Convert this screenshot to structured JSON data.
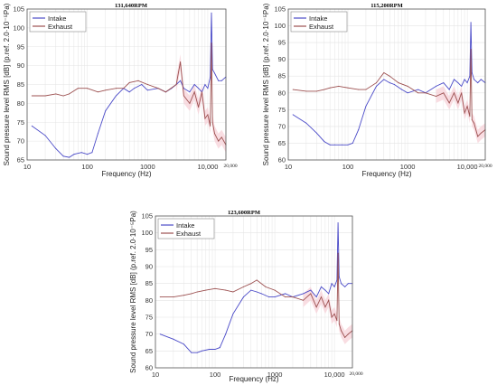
{
  "figure": {
    "shared": {
      "xlabel": "Frequency (Hz)",
      "ylabel": "Sound pressure level RMS [dB] (p.ref. 2.0·10⁻⁵Pa)",
      "legend": [
        "Intake",
        "Exhaust"
      ],
      "colors": {
        "Intake": "#4b4bc8",
        "Exhaust": "#9c5050",
        "band": "#f7cfd6",
        "grid": "#e4e4e4"
      }
    }
  },
  "chart_data": [
    {
      "type": "line",
      "title": "131,640RPM",
      "xscale": "log",
      "xlim": [
        10,
        20000
      ],
      "ylim": [
        65,
        105
      ],
      "xticks": [
        "10",
        "100",
        "1000",
        "10,000"
      ],
      "xtick_values": [
        10,
        100,
        1000,
        10000
      ],
      "xtick_extra": {
        "label": "20,000",
        "value": 20000
      },
      "yticks": [
        65,
        70,
        75,
        80,
        85,
        90,
        95,
        100,
        105
      ],
      "legend_position": "top-left",
      "grid": true,
      "series": [
        {
          "name": "Intake",
          "x": [
            12,
            20,
            30,
            40,
            50,
            60,
            80,
            100,
            120,
            150,
            200,
            300,
            400,
            500,
            600,
            800,
            1000,
            1500,
            2000,
            2500,
            3000,
            3500,
            4000,
            5000,
            6000,
            7000,
            8000,
            9000,
            10000,
            11000,
            11500,
            12000,
            13000,
            15000,
            17000,
            20000
          ],
          "y": [
            74,
            71.5,
            68,
            66,
            65.7,
            66.5,
            67,
            66.5,
            67,
            72,
            78,
            82,
            84,
            83,
            84,
            85,
            83.5,
            84,
            83,
            84,
            85,
            86,
            84,
            83,
            85,
            84,
            83,
            85,
            84,
            87,
            104,
            89,
            88,
            86,
            86,
            87
          ]
        },
        {
          "name": "Exhaust",
          "x": [
            12,
            20,
            30,
            40,
            50,
            70,
            100,
            150,
            200,
            300,
            400,
            500,
            700,
            1000,
            1500,
            2000,
            3000,
            3500,
            4000,
            5000,
            6000,
            7000,
            8000,
            9000,
            10000,
            11000,
            11500,
            12000,
            13000,
            15000,
            17000,
            20000
          ],
          "y": [
            82,
            82,
            82.5,
            82,
            82.5,
            84,
            84,
            83,
            83.5,
            84,
            84,
            85.5,
            86,
            85,
            84,
            83,
            85,
            91,
            82,
            80,
            83,
            79,
            83,
            76,
            77,
            74,
            96,
            75,
            72,
            70,
            71,
            69
          ]
        }
      ]
    },
    {
      "type": "line",
      "title": "115,200RPM",
      "xscale": "log",
      "xlim": [
        10,
        20000
      ],
      "ylim": [
        60,
        105
      ],
      "xticks": [
        "10",
        "100",
        "1000",
        "10,000"
      ],
      "xtick_values": [
        10,
        100,
        1000,
        10000
      ],
      "xtick_extra": {
        "label": "20,000",
        "value": 20000
      },
      "yticks": [
        60,
        65,
        70,
        75,
        80,
        85,
        90,
        95,
        100,
        105
      ],
      "legend_position": "top-left",
      "grid": true,
      "series": [
        {
          "name": "Intake",
          "x": [
            12,
            20,
            30,
            40,
            50,
            60,
            80,
            100,
            120,
            150,
            200,
            300,
            400,
            500,
            600,
            800,
            1000,
            1500,
            2000,
            3000,
            4000,
            5000,
            6000,
            7000,
            8000,
            9000,
            10000,
            11000,
            11500,
            12000,
            13000,
            15000,
            17000,
            20000
          ],
          "y": [
            73.5,
            71,
            68,
            65.5,
            64.5,
            64.5,
            64.5,
            64.5,
            65,
            69,
            76,
            82,
            84,
            83,
            82.5,
            81,
            80,
            81,
            80,
            82,
            83,
            81,
            84,
            83,
            82,
            84,
            83,
            85,
            101,
            86,
            84,
            83,
            84,
            83
          ]
        },
        {
          "name": "Exhaust",
          "x": [
            12,
            20,
            30,
            40,
            50,
            70,
            100,
            150,
            200,
            300,
            400,
            500,
            700,
            1000,
            1500,
            2000,
            3000,
            4000,
            5000,
            6000,
            7000,
            8000,
            9000,
            10000,
            11000,
            11500,
            12000,
            13000,
            15000,
            17000,
            20000
          ],
          "y": [
            81,
            80.5,
            80.5,
            81,
            81.5,
            82,
            81.5,
            81,
            81,
            83,
            86,
            85,
            83,
            82,
            80,
            80,
            79,
            80,
            77,
            80,
            77,
            80,
            74,
            76,
            73,
            93,
            72,
            71,
            67,
            68,
            69
          ]
        }
      ]
    },
    {
      "type": "line",
      "title": "123,600RPM",
      "xscale": "log",
      "xlim": [
        10,
        20000
      ],
      "ylim": [
        60,
        105
      ],
      "xticks": [
        "10",
        "100",
        "1000",
        "10,000"
      ],
      "xtick_values": [
        10,
        100,
        1000,
        10000
      ],
      "xtick_extra": {
        "label": "20,000",
        "value": 20000
      },
      "yticks": [
        60,
        65,
        70,
        75,
        80,
        85,
        90,
        95,
        100,
        105
      ],
      "legend_position": "top-left",
      "grid": true,
      "series": [
        {
          "name": "Intake",
          "x": [
            12,
            20,
            30,
            40,
            50,
            60,
            80,
            100,
            120,
            150,
            200,
            300,
            400,
            500,
            600,
            800,
            1000,
            1500,
            2000,
            3000,
            4000,
            5000,
            6000,
            7000,
            8000,
            9000,
            10000,
            11000,
            11500,
            12000,
            13000,
            15000,
            17000,
            20000
          ],
          "y": [
            70,
            68.5,
            67,
            64.5,
            64.5,
            65,
            65.5,
            65.5,
            66,
            70,
            76,
            81,
            83,
            82.5,
            82,
            81,
            81,
            82,
            81,
            82,
            83,
            81,
            84,
            83,
            82,
            85,
            84,
            86,
            103,
            87,
            85,
            84,
            85,
            85
          ]
        },
        {
          "name": "Exhaust",
          "x": [
            12,
            20,
            30,
            40,
            50,
            70,
            100,
            150,
            200,
            300,
            400,
            500,
            700,
            1000,
            1500,
            2000,
            3000,
            4000,
            5000,
            6000,
            7000,
            8000,
            9000,
            10000,
            11000,
            11500,
            12000,
            13000,
            15000,
            17000,
            20000
          ],
          "y": [
            81,
            81,
            81.5,
            82,
            82.5,
            83,
            83.5,
            83,
            82.5,
            84,
            85,
            86,
            84,
            83,
            81,
            81,
            80,
            82,
            78,
            81,
            78,
            80,
            75,
            76,
            74,
            94,
            73,
            71,
            69,
            70,
            71
          ]
        }
      ]
    }
  ]
}
